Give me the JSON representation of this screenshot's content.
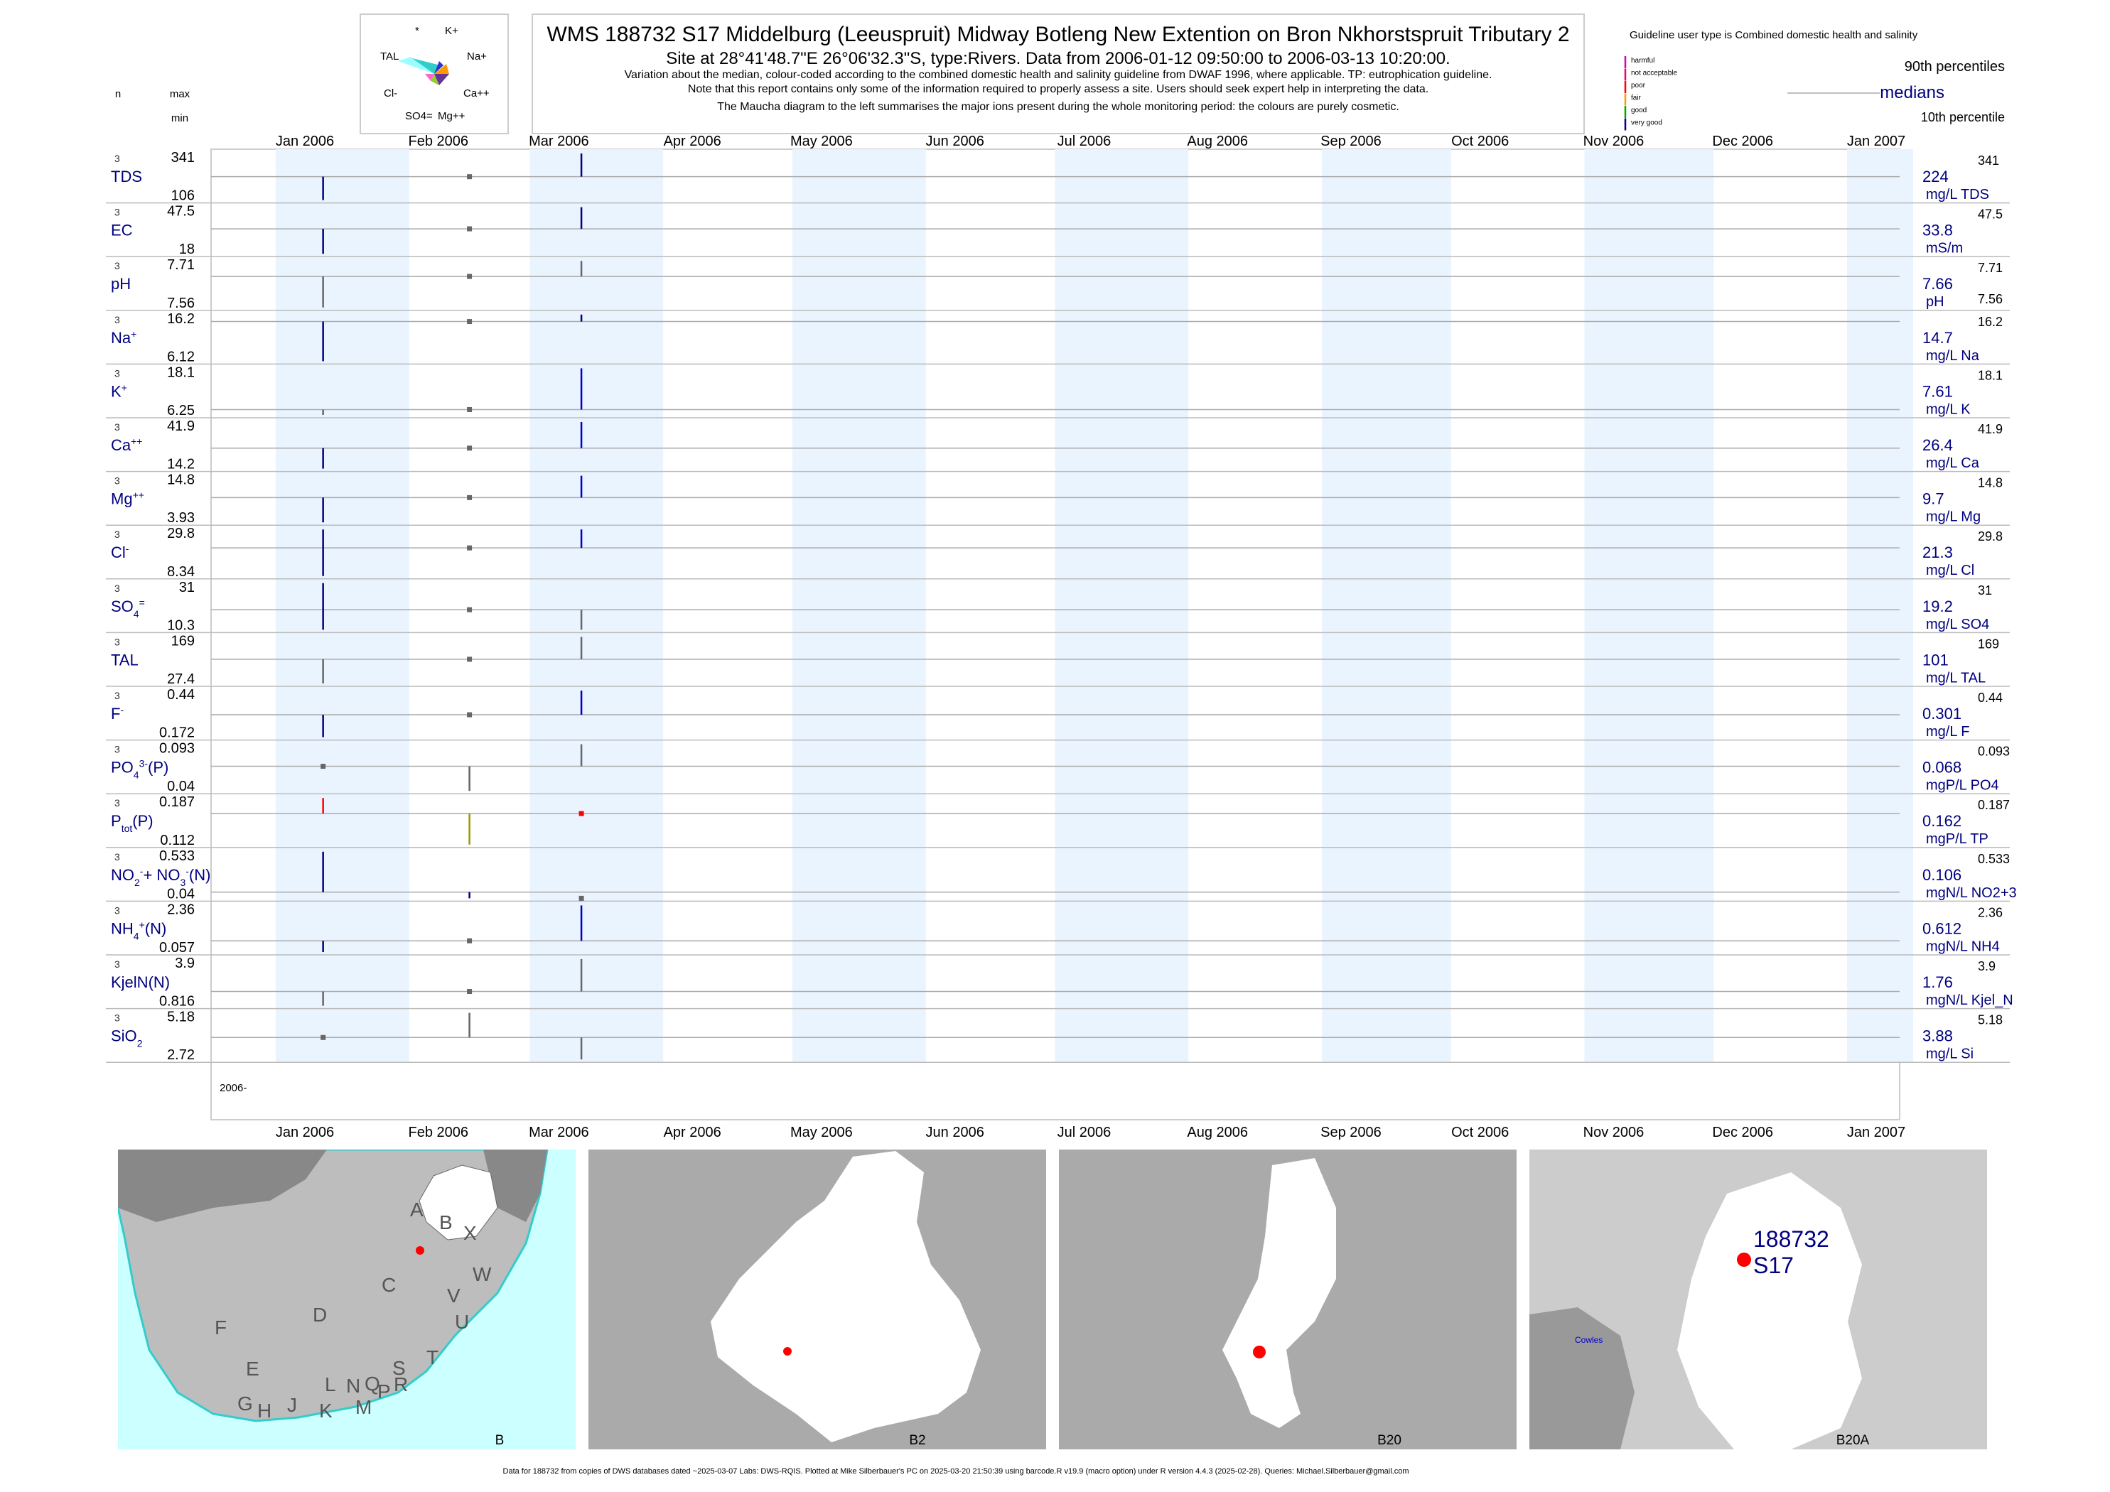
{
  "header": {
    "title": "WMS 188732 S17 Middelburg (Leeuspruit) Midway Botleng New Extention on Bron Nkhorstspruit Tributary 2",
    "subtitle": "Site at 28°41'48.7\"E 26°06'32.3\"S, type:Rivers.  Data from 2006-01-12 09:50:00 to 2006-03-13 10:20:00.",
    "notes": [
      "Variation about the median,  colour-coded according to the combined domestic health and salinity guideline from DWAF 1996, where applicable. TP: eutrophication guideline.",
      "Note that this report contains only some of the information required to properly assess a site. Users should seek expert help in interpreting the data.",
      "The Maucha diagram to the left summarises the major ions present during the whole monitoring period: the colours are purely cosmetic."
    ]
  },
  "maucha": {
    "labels": [
      "*",
      "K+",
      "TAL",
      "Na+",
      "Cl-",
      "Ca++",
      "SO4=",
      "Mg++"
    ]
  },
  "legend": {
    "guideline_text": "Guideline user type is Combined domestic health and salinity",
    "categories": [
      {
        "label": "harmful",
        "color": "#cc00cc"
      },
      {
        "label": "not acceptable",
        "color": "#e6007e"
      },
      {
        "label": "poor",
        "color": "#ff0000"
      },
      {
        "label": "fair",
        "color": "#ff9900"
      },
      {
        "label": "good",
        "color": "#00aa00"
      },
      {
        "label": "very good",
        "color": "#000080"
      }
    ],
    "p90": "90th percentiles",
    "medians": "medians",
    "p10": "10th percentile"
  },
  "column_headers": {
    "n": "n",
    "max": "max",
    "min": "min"
  },
  "chart_data": {
    "type": "line",
    "x_range": [
      "2006-01-01",
      "2007-01-01"
    ],
    "x_ticks": [
      "Jan 2006",
      "Feb 2006",
      "Mar 2006",
      "Apr 2006",
      "May 2006",
      "Jun 2006",
      "Jul 2006",
      "Aug 2006",
      "Sep 2006",
      "Oct 2006",
      "Nov 2006",
      "Dec 2006",
      "Jan 2007"
    ],
    "year_label": "2006-",
    "panels": [
      {
        "id": "TDS",
        "label": "TDS",
        "n": "3",
        "max": "341",
        "min": "106",
        "median": "224",
        "unit": "mg/L TDS",
        "rmax": "341",
        "rmin": "",
        "samples": [
          {
            "date": "2006-01-12",
            "lo": 106,
            "hi": 224,
            "color": "#000080"
          },
          {
            "date": "2006-02-15",
            "lo": 224,
            "hi": 224,
            "color": "#666666"
          },
          {
            "date": "2006-03-13",
            "lo": 224,
            "hi": 341,
            "color": "#000080"
          }
        ]
      },
      {
        "id": "EC",
        "label": "EC",
        "n": "3",
        "max": "47.5",
        "min": "18",
        "median": "33.8",
        "unit": "mS/m",
        "rmax": "47.5",
        "rmin": "",
        "samples": [
          {
            "date": "2006-01-12",
            "lo": 18,
            "hi": 33.8,
            "color": "#000080"
          },
          {
            "date": "2006-02-15",
            "lo": 33.8,
            "hi": 33.8,
            "color": "#666666"
          },
          {
            "date": "2006-03-13",
            "lo": 33.8,
            "hi": 47.5,
            "color": "#000080"
          }
        ]
      },
      {
        "id": "pH",
        "label": "pH",
        "n": "3",
        "max": "7.71",
        "min": "7.56",
        "median": "7.66",
        "unit": "pH",
        "rmax": "7.71",
        "rmin": "7.56",
        "samples": [
          {
            "date": "2006-01-12",
            "lo": 7.56,
            "hi": 7.66,
            "color": "#666666"
          },
          {
            "date": "2006-02-15",
            "lo": 7.66,
            "hi": 7.66,
            "color": "#666666"
          },
          {
            "date": "2006-03-13",
            "lo": 7.66,
            "hi": 7.71,
            "color": "#666666"
          }
        ]
      },
      {
        "id": "Na",
        "label": "Na",
        "sup": "+",
        "n": "3",
        "max": "16.2",
        "min": "6.12",
        "median": "14.7",
        "unit": "mg/L Na",
        "rmax": "16.2",
        "rmin": "",
        "samples": [
          {
            "date": "2006-01-12",
            "lo": 6.12,
            "hi": 14.7,
            "color": "#000080"
          },
          {
            "date": "2006-02-15",
            "lo": 14.7,
            "hi": 14.7,
            "color": "#666666"
          },
          {
            "date": "2006-03-13",
            "lo": 14.7,
            "hi": 16.2,
            "color": "#000080"
          }
        ]
      },
      {
        "id": "K",
        "label": "K",
        "sup": "+",
        "n": "3",
        "max": "18.1",
        "min": "6.25",
        "median": "7.61",
        "unit": "mg/L K",
        "rmax": "18.1",
        "rmin": "",
        "samples": [
          {
            "date": "2006-01-12",
            "lo": 6.25,
            "hi": 7.61,
            "color": "#666666"
          },
          {
            "date": "2006-02-15",
            "lo": 7.61,
            "hi": 7.61,
            "color": "#666666"
          },
          {
            "date": "2006-03-13",
            "lo": 7.61,
            "hi": 18.1,
            "color": "#0000cc"
          }
        ]
      },
      {
        "id": "Ca",
        "label": "Ca",
        "sup": "++",
        "n": "3",
        "max": "41.9",
        "min": "14.2",
        "median": "26.4",
        "unit": "mg/L Ca",
        "rmax": "41.9",
        "rmin": "",
        "samples": [
          {
            "date": "2006-01-12",
            "lo": 14.2,
            "hi": 26.4,
            "color": "#000080"
          },
          {
            "date": "2006-02-15",
            "lo": 26.4,
            "hi": 26.4,
            "color": "#666666"
          },
          {
            "date": "2006-03-13",
            "lo": 26.4,
            "hi": 41.9,
            "color": "#0000cc"
          }
        ]
      },
      {
        "id": "Mg",
        "label": "Mg",
        "sup": "++",
        "n": "3",
        "max": "14.8",
        "min": "3.93",
        "median": "9.7",
        "unit": "mg/L Mg",
        "rmax": "14.8",
        "rmin": "",
        "samples": [
          {
            "date": "2006-01-12",
            "lo": 3.93,
            "hi": 9.7,
            "color": "#000080"
          },
          {
            "date": "2006-02-15",
            "lo": 9.7,
            "hi": 9.7,
            "color": "#666666"
          },
          {
            "date": "2006-03-13",
            "lo": 9.7,
            "hi": 14.8,
            "color": "#0000cc"
          }
        ]
      },
      {
        "id": "Cl",
        "label": "Cl",
        "sup": "-",
        "n": "3",
        "max": "29.8",
        "min": "8.34",
        "median": "21.3",
        "unit": "mg/L Cl",
        "rmax": "29.8",
        "rmin": "",
        "samples": [
          {
            "date": "2006-01-12",
            "lo": 8.34,
            "hi": 29.8,
            "color": "#000080"
          },
          {
            "date": "2006-02-15",
            "lo": 21.3,
            "hi": 21.3,
            "color": "#666666"
          },
          {
            "date": "2006-03-13",
            "lo": 21.3,
            "hi": 29.8,
            "color": "#0000cc"
          }
        ]
      },
      {
        "id": "SO4",
        "label": "SO",
        "sub": "4",
        "sup": "=",
        "n": "3",
        "max": "31",
        "min": "10.3",
        "median": "19.2",
        "unit": "mg/L SO4",
        "rmax": "31",
        "rmin": "",
        "samples": [
          {
            "date": "2006-01-12",
            "lo": 10.3,
            "hi": 31,
            "color": "#000080"
          },
          {
            "date": "2006-02-15",
            "lo": 19.2,
            "hi": 19.2,
            "color": "#666666"
          },
          {
            "date": "2006-03-13",
            "lo": 10.3,
            "hi": 19.2,
            "color": "#666666"
          }
        ]
      },
      {
        "id": "TAL",
        "label": "TAL",
        "n": "3",
        "max": "169",
        "min": "27.4",
        "median": "101",
        "unit": "mg/L TAL",
        "rmax": "169",
        "rmin": "",
        "samples": [
          {
            "date": "2006-01-12",
            "lo": 27.4,
            "hi": 101,
            "color": "#666666"
          },
          {
            "date": "2006-02-15",
            "lo": 101,
            "hi": 101,
            "color": "#666666"
          },
          {
            "date": "2006-03-13",
            "lo": 101,
            "hi": 169,
            "color": "#666666"
          }
        ]
      },
      {
        "id": "F",
        "label": "F",
        "sup": "-",
        "n": "3",
        "max": "0.44",
        "min": "0.172",
        "median": "0.301",
        "unit": "mg/L F",
        "rmax": "0.44",
        "rmin": "",
        "samples": [
          {
            "date": "2006-01-12",
            "lo": 0.172,
            "hi": 0.301,
            "color": "#000080"
          },
          {
            "date": "2006-02-15",
            "lo": 0.301,
            "hi": 0.301,
            "color": "#666666"
          },
          {
            "date": "2006-03-13",
            "lo": 0.301,
            "hi": 0.44,
            "color": "#0000cc"
          }
        ]
      },
      {
        "id": "PO4",
        "label": "PO",
        "sub": "4",
        "sup": "3-",
        "tail": "(P)",
        "n": "3",
        "max": "0.093",
        "min": "0.04",
        "median": "0.068",
        "unit": "mgP/L PO4",
        "rmax": "0.093",
        "rmin": "",
        "samples": [
          {
            "date": "2006-01-12",
            "lo": 0.068,
            "hi": 0.068,
            "color": "#666666"
          },
          {
            "date": "2006-02-15",
            "lo": 0.04,
            "hi": 0.068,
            "color": "#666666"
          },
          {
            "date": "2006-03-13",
            "lo": 0.068,
            "hi": 0.093,
            "color": "#666666"
          }
        ]
      },
      {
        "id": "TP",
        "label": "P",
        "sub": "tot",
        "tail": "(P)",
        "n": "3",
        "max": "0.187",
        "min": "0.112",
        "median": "0.162",
        "unit": "mgP/L TP",
        "rmax": "0.187",
        "rmin": "",
        "samples": [
          {
            "date": "2006-01-12",
            "lo": 0.162,
            "hi": 0.187,
            "color": "#ff0000"
          },
          {
            "date": "2006-02-15",
            "lo": 0.112,
            "hi": 0.162,
            "color": "#999900"
          },
          {
            "date": "2006-03-13",
            "lo": 0.162,
            "hi": 0.162,
            "color": "#ff0000"
          }
        ]
      },
      {
        "id": "NO23",
        "label": "NO",
        "sub": "2",
        "sup": "-",
        "mid": "+ NO",
        "sub2": "3",
        "sup2": "-",
        "tail": "(N)",
        "n": "3",
        "max": "0.533",
        "min": "0.04",
        "median": "0.106",
        "unit": "mgN/L NO2+3",
        "rmax": "0.533",
        "rmin": "",
        "samples": [
          {
            "date": "2006-01-12",
            "lo": 0.106,
            "hi": 0.533,
            "color": "#000080"
          },
          {
            "date": "2006-02-15",
            "lo": 0.04,
            "hi": 0.106,
            "color": "#000080"
          },
          {
            "date": "2006-03-13",
            "lo": 0.04,
            "hi": 0.04,
            "color": "#666666"
          }
        ]
      },
      {
        "id": "NH4",
        "label": "NH",
        "sub": "4",
        "sup": "+",
        "tail": "(N)",
        "n": "3",
        "max": "2.36",
        "min": "0.057",
        "median": "0.612",
        "unit": "mgN/L NH4",
        "rmax": "2.36",
        "rmin": "",
        "samples": [
          {
            "date": "2006-01-12",
            "lo": 0.057,
            "hi": 0.612,
            "color": "#000080"
          },
          {
            "date": "2006-02-15",
            "lo": 0.612,
            "hi": 0.612,
            "color": "#666666"
          },
          {
            "date": "2006-03-13",
            "lo": 0.612,
            "hi": 2.36,
            "color": "#0000cc"
          }
        ]
      },
      {
        "id": "KjelN",
        "label": "KjelN(N)",
        "n": "3",
        "max": "3.9",
        "min": "0.816",
        "median": "1.76",
        "unit": "mgN/L Kjel_N",
        "rmax": "3.9",
        "rmin": "",
        "samples": [
          {
            "date": "2006-01-12",
            "lo": 0.816,
            "hi": 1.76,
            "color": "#666666"
          },
          {
            "date": "2006-02-15",
            "lo": 1.76,
            "hi": 1.76,
            "color": "#666666"
          },
          {
            "date": "2006-03-13",
            "lo": 1.76,
            "hi": 3.9,
            "color": "#666666"
          }
        ]
      },
      {
        "id": "SiO2",
        "label": "SiO",
        "sub": "2",
        "n": "3",
        "max": "5.18",
        "min": "2.72",
        "median": "3.88",
        "unit": "mg/L Si",
        "rmax": "5.18",
        "rmin": "",
        "samples": [
          {
            "date": "2006-01-12",
            "lo": 3.88,
            "hi": 3.88,
            "color": "#666666"
          },
          {
            "date": "2006-02-15",
            "lo": 3.88,
            "hi": 5.18,
            "color": "#666666"
          },
          {
            "date": "2006-03-13",
            "lo": 2.72,
            "hi": 3.88,
            "color": "#666666"
          }
        ]
      }
    ]
  },
  "maps": {
    "panels": [
      {
        "caption": "B",
        "letters": [
          "A",
          "B",
          "X",
          "W",
          "C",
          "D",
          "V",
          "U",
          "T",
          "F",
          "E",
          "G",
          "H",
          "J",
          "K",
          "L",
          "M",
          "N",
          "Q",
          "P",
          "R",
          "S"
        ]
      },
      {
        "caption": "B2"
      },
      {
        "caption": "B20"
      },
      {
        "caption": "B20A",
        "site_label_1": "188732",
        "site_label_2": "S17",
        "place": "Cowles"
      }
    ]
  },
  "footer": "Data for 188732 from copies of DWS databases dated ~2025-03-07 Labs: DWS-RQIS. Plotted at Mike Silberbauer's PC on 2025-03-20 21:50:39 using barcode.R v19.9 (macro option) under R version 4.4.3 (2025-02-28). Queries: Michael.Silberbauer@gmail.com"
}
